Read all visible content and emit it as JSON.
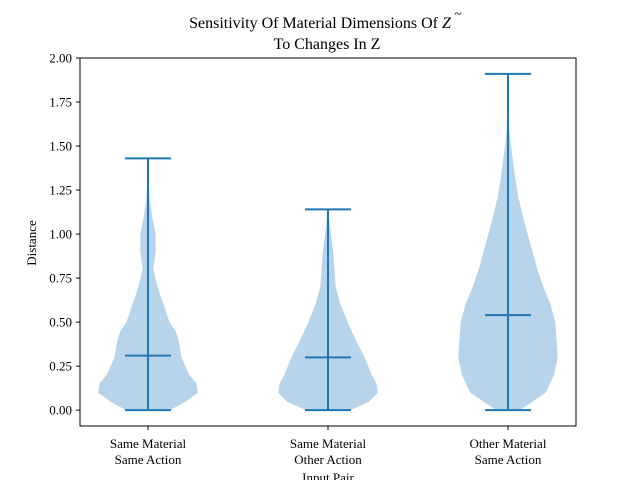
{
  "chart_data": {
    "type": "violin",
    "title_line1": "Sensitivity Of Material Dimensions Of",
    "title_symbol": "Z",
    "title_symbol_accent": "~",
    "title_line2": "To Changes In Z",
    "xlabel": "Input Pair",
    "ylabel": "Distance",
    "ylim": [
      -0.09,
      2.0
    ],
    "yticks": [
      "0.00",
      "0.25",
      "0.50",
      "0.75",
      "1.00",
      "1.25",
      "1.50",
      "1.75",
      "2.00"
    ],
    "categories": [
      [
        "Same Material",
        "Same Action"
      ],
      [
        "Same Material",
        "Other Action"
      ],
      [
        "Other Material",
        "Same Action"
      ]
    ],
    "violins": [
      {
        "min": 0.0,
        "max": 1.43,
        "median": 0.31,
        "density": [
          [
            0.0,
            0.35
          ],
          [
            0.05,
            0.62
          ],
          [
            0.1,
            0.82
          ],
          [
            0.15,
            0.8
          ],
          [
            0.2,
            0.68
          ],
          [
            0.3,
            0.55
          ],
          [
            0.4,
            0.5
          ],
          [
            0.45,
            0.45
          ],
          [
            0.5,
            0.35
          ],
          [
            0.6,
            0.25
          ],
          [
            0.7,
            0.15
          ],
          [
            0.8,
            0.08
          ],
          [
            0.9,
            0.12
          ],
          [
            1.0,
            0.12
          ],
          [
            1.1,
            0.06
          ],
          [
            1.2,
            0.02
          ],
          [
            1.3,
            0.008
          ],
          [
            1.43,
            0.002
          ]
        ]
      },
      {
        "min": 0.0,
        "max": 1.14,
        "median": 0.3,
        "density": [
          [
            0.0,
            0.35
          ],
          [
            0.05,
            0.68
          ],
          [
            0.1,
            0.82
          ],
          [
            0.15,
            0.8
          ],
          [
            0.2,
            0.72
          ],
          [
            0.3,
            0.6
          ],
          [
            0.4,
            0.45
          ],
          [
            0.5,
            0.32
          ],
          [
            0.6,
            0.2
          ],
          [
            0.7,
            0.12
          ],
          [
            0.8,
            0.1
          ],
          [
            0.9,
            0.08
          ],
          [
            1.0,
            0.04
          ],
          [
            1.1,
            0.01
          ],
          [
            1.14,
            0.002
          ]
        ]
      },
      {
        "min": 0.0,
        "max": 1.91,
        "median": 0.54,
        "density": [
          [
            0.0,
            0.18
          ],
          [
            0.05,
            0.4
          ],
          [
            0.1,
            0.62
          ],
          [
            0.2,
            0.76
          ],
          [
            0.3,
            0.82
          ],
          [
            0.4,
            0.8
          ],
          [
            0.5,
            0.78
          ],
          [
            0.6,
            0.7
          ],
          [
            0.7,
            0.58
          ],
          [
            0.8,
            0.48
          ],
          [
            0.9,
            0.4
          ],
          [
            1.0,
            0.32
          ],
          [
            1.1,
            0.24
          ],
          [
            1.2,
            0.17
          ],
          [
            1.3,
            0.12
          ],
          [
            1.4,
            0.08
          ],
          [
            1.5,
            0.04
          ],
          [
            1.6,
            0.015
          ],
          [
            1.7,
            0.008
          ],
          [
            1.8,
            0.003
          ],
          [
            1.91,
            0.001
          ]
        ]
      }
    ],
    "colors": {
      "body": "#b8d4ea",
      "lines": "#1f77b4"
    },
    "grid": false
  }
}
